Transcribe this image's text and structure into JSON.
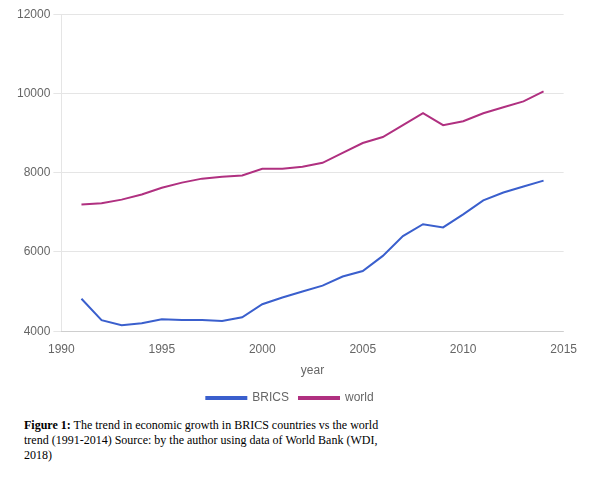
{
  "chart_data": {
    "type": "line",
    "x": [
      1991,
      1992,
      1993,
      1994,
      1995,
      1996,
      1997,
      1998,
      1999,
      2000,
      2001,
      2002,
      2003,
      2004,
      2005,
      2006,
      2007,
      2008,
      2009,
      2010,
      2011,
      2012,
      2013,
      2014
    ],
    "series": [
      {
        "name": "BRICS",
        "color": "#3a5fcd",
        "values": [
          4820,
          4280,
          4150,
          4200,
          4300,
          4280,
          4280,
          4260,
          4350,
          4680,
          4850,
          5000,
          5150,
          5380,
          5520,
          5900,
          6400,
          6700,
          6620,
          6950,
          7300,
          7500,
          7650,
          7800
        ]
      },
      {
        "name": "world",
        "color": "#b03080",
        "values": [
          7200,
          7230,
          7320,
          7450,
          7620,
          7750,
          7850,
          7900,
          7930,
          8100,
          8100,
          8150,
          8250,
          8500,
          8750,
          8900,
          9200,
          9500,
          9200,
          9300,
          9500,
          9650,
          9800,
          10050
        ]
      }
    ],
    "x_label": "year",
    "xlim": [
      1990,
      2015
    ],
    "xticks": [
      1990,
      1995,
      2000,
      2005,
      2010,
      2015
    ],
    "ylim": [
      4000,
      12000
    ],
    "yticks": [
      4000,
      6000,
      8000,
      10000,
      12000
    ],
    "grid": "y",
    "legend": "bottom",
    "annotations": [
      "Figure 1:",
      "The trend in economic growth in BRICS countries vs the world\ntrend (1991-2014) Source: by the author using data of World Bank (WDI,\n2018)"
    ]
  }
}
